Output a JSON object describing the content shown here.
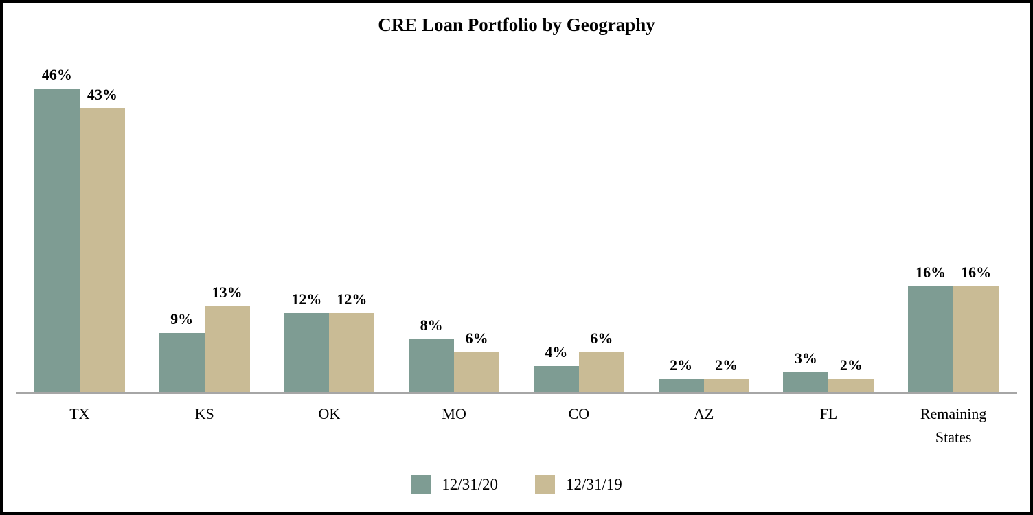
{
  "chart_data": {
    "type": "bar",
    "title": "CRE Loan Portfolio by Geography",
    "xlabel": "",
    "ylabel": "",
    "categories": [
      "TX",
      "KS",
      "OK",
      "MO",
      "CO",
      "AZ",
      "FL",
      "Remaining States"
    ],
    "series": [
      {
        "name": "12/31/20",
        "color": "#7E9C93",
        "values": [
          46,
          9,
          12,
          8,
          4,
          2,
          3,
          16
        ]
      },
      {
        "name": "12/31/19",
        "color": "#C9BB95",
        "values": [
          43,
          13,
          12,
          6,
          6,
          2,
          2,
          16
        ]
      }
    ],
    "value_suffix": "%",
    "ylim": [
      0,
      50
    ],
    "grid": false,
    "y_axis_visible": false,
    "legend_position": "bottom",
    "colors": {
      "axis_line": "#A6A6A6",
      "frame_border": "#000000",
      "background": "#FFFFFF",
      "label_text": "#000000"
    }
  }
}
